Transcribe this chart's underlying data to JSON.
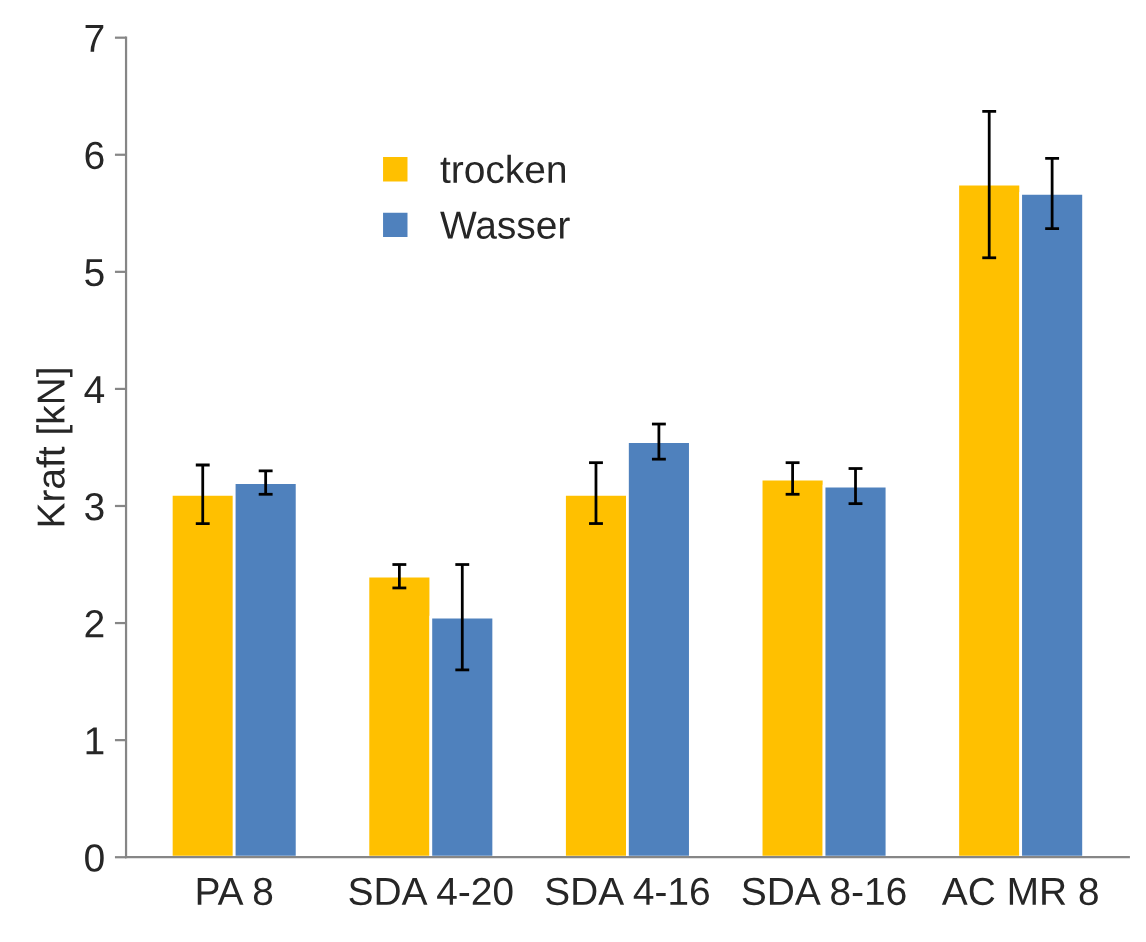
{
  "chart_data": {
    "type": "bar",
    "ylabel": "Kraft [kN]",
    "categories": [
      "PA 8",
      "SDA 4-20",
      "SDA 4-16",
      "SDA 8-16",
      "AC MR 8"
    ],
    "series": [
      {
        "name": "trocken",
        "color": "#ffc000",
        "values": [
          3.1,
          2.4,
          3.1,
          3.23,
          5.75
        ],
        "errors": [
          [
            2.85,
            3.35
          ],
          [
            2.3,
            2.5
          ],
          [
            2.85,
            3.37
          ],
          [
            3.1,
            3.37
          ],
          [
            5.12,
            6.37
          ]
        ]
      },
      {
        "name": "Wasser",
        "color": "#4f81bd",
        "values": [
          3.2,
          2.05,
          3.55,
          3.17,
          5.67
        ],
        "errors": [
          [
            3.1,
            3.3
          ],
          [
            1.6,
            2.5
          ],
          [
            3.4,
            3.7
          ],
          [
            3.02,
            3.32
          ],
          [
            5.37,
            5.97
          ]
        ]
      }
    ],
    "ylim": [
      0,
      7
    ],
    "yticks": [
      0,
      1,
      2,
      3,
      4,
      5,
      6,
      7
    ],
    "grid": false,
    "legend": "top left"
  }
}
